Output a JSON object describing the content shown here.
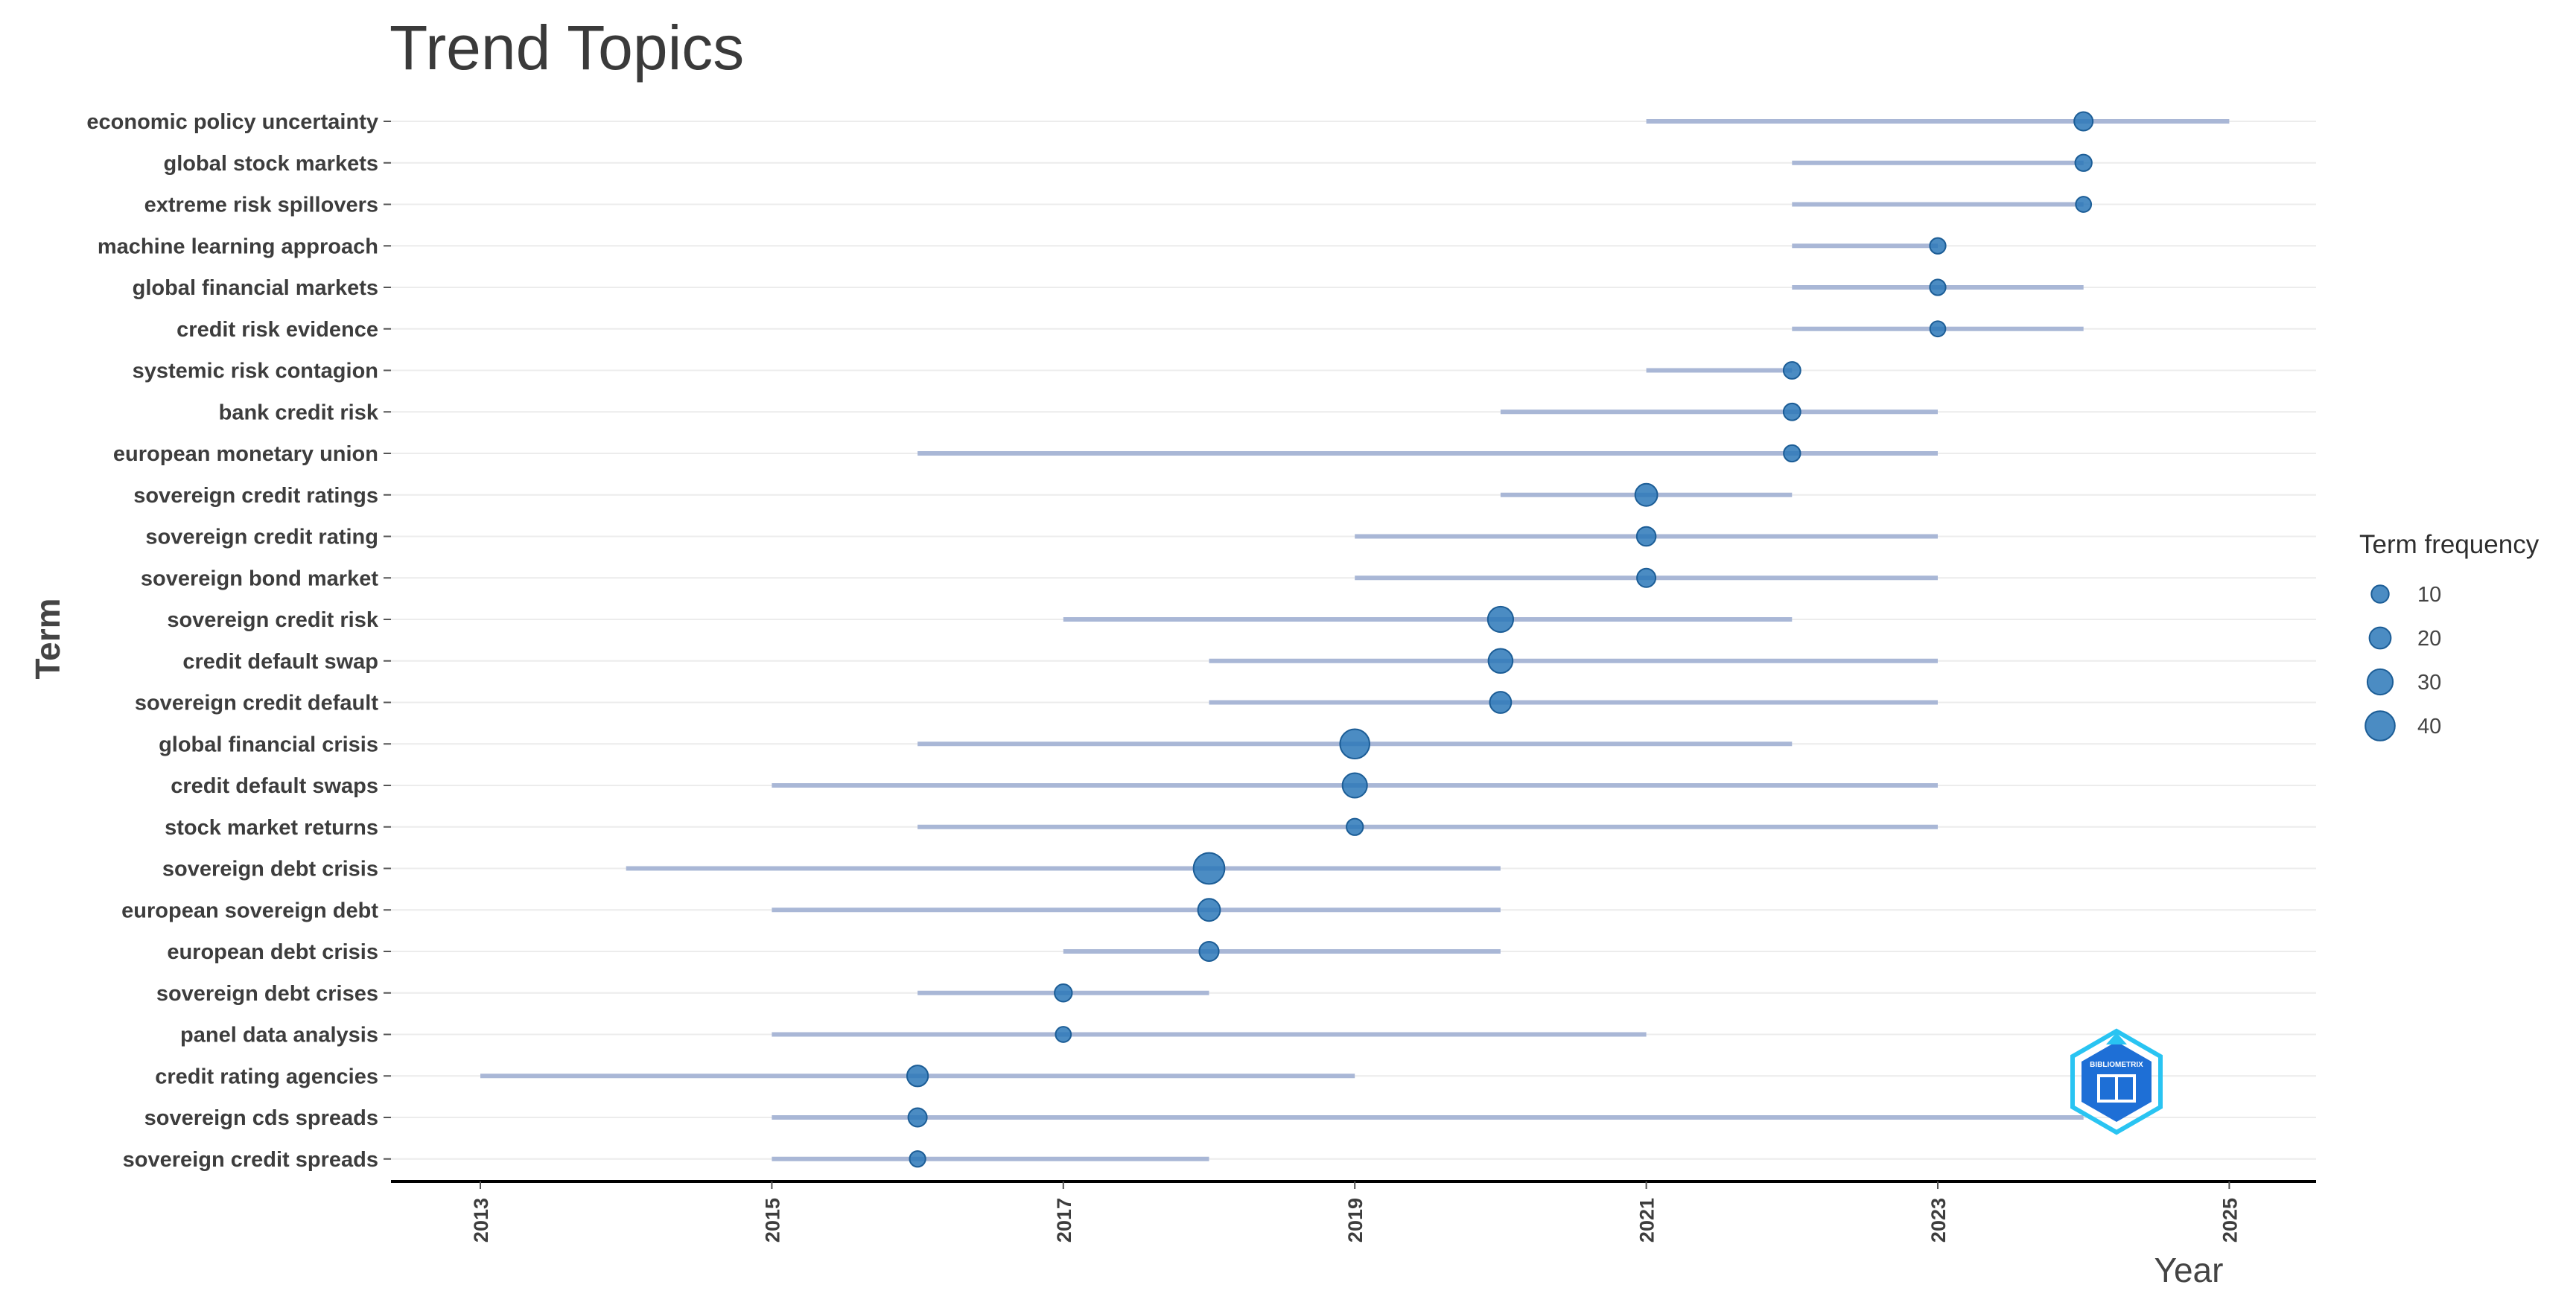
{
  "chart_data": {
    "type": "scatter",
    "title": "Trend Topics",
    "xlabel": "Year",
    "ylabel": "Term",
    "xlim": [
      2012.7,
      2025.6
    ],
    "x_ticks": [
      "2013",
      "2015",
      "2017",
      "2019",
      "2021",
      "2023",
      "2025"
    ],
    "x_tick_values": [
      2013,
      2015,
      2017,
      2019,
      2021,
      2023,
      2025
    ],
    "legend_title": "Term frequency",
    "legend_entries": [
      {
        "label": "10",
        "value": 10
      },
      {
        "label": "20",
        "value": 20
      },
      {
        "label": "30",
        "value": 30
      },
      {
        "label": "40",
        "value": 40
      }
    ],
    "terms": [
      {
        "term": "economic policy uncertainty",
        "start": 2021,
        "median": 2024,
        "end": 2025,
        "freq": 13
      },
      {
        "term": "global stock markets",
        "start": 2022,
        "median": 2024,
        "end": 2024,
        "freq": 8
      },
      {
        "term": "extreme risk spillovers",
        "start": 2022,
        "median": 2024,
        "end": 2024,
        "freq": 5
      },
      {
        "term": "machine learning approach",
        "start": 2022,
        "median": 2023,
        "end": 2023,
        "freq": 6
      },
      {
        "term": "global financial markets",
        "start": 2022,
        "median": 2023,
        "end": 2024,
        "freq": 6
      },
      {
        "term": "credit risk evidence",
        "start": 2022,
        "median": 2023,
        "end": 2024,
        "freq": 5
      },
      {
        "term": "systemic risk contagion",
        "start": 2021,
        "median": 2022,
        "end": 2022,
        "freq": 9
      },
      {
        "term": "bank credit risk",
        "start": 2020,
        "median": 2022,
        "end": 2023,
        "freq": 9
      },
      {
        "term": "european monetary union",
        "start": 2016,
        "median": 2022,
        "end": 2023,
        "freq": 8
      },
      {
        "term": "sovereign credit ratings",
        "start": 2020,
        "median": 2021,
        "end": 2022,
        "freq": 22
      },
      {
        "term": "sovereign credit rating",
        "start": 2019,
        "median": 2021,
        "end": 2023,
        "freq": 14
      },
      {
        "term": "sovereign bond market",
        "start": 2019,
        "median": 2021,
        "end": 2023,
        "freq": 13
      },
      {
        "term": "sovereign credit risk",
        "start": 2017,
        "median": 2020,
        "end": 2022,
        "freq": 30
      },
      {
        "term": "credit default swap",
        "start": 2018,
        "median": 2020,
        "end": 2023,
        "freq": 27
      },
      {
        "term": "sovereign credit default",
        "start": 2018,
        "median": 2020,
        "end": 2023,
        "freq": 20
      },
      {
        "term": "global financial crisis",
        "start": 2016,
        "median": 2019,
        "end": 2022,
        "freq": 40
      },
      {
        "term": "credit default swaps",
        "start": 2015,
        "median": 2019,
        "end": 2023,
        "freq": 28
      },
      {
        "term": "stock market returns",
        "start": 2016,
        "median": 2019,
        "end": 2023,
        "freq": 8
      },
      {
        "term": "sovereign debt crisis",
        "start": 2014,
        "median": 2018,
        "end": 2020,
        "freq": 44
      },
      {
        "term": "european sovereign debt",
        "start": 2015,
        "median": 2018,
        "end": 2020,
        "freq": 22
      },
      {
        "term": "european debt crisis",
        "start": 2017,
        "median": 2018,
        "end": 2020,
        "freq": 15
      },
      {
        "term": "sovereign debt crises",
        "start": 2016,
        "median": 2017,
        "end": 2018,
        "freq": 10
      },
      {
        "term": "panel data analysis",
        "start": 2015,
        "median": 2017,
        "end": 2021,
        "freq": 5
      },
      {
        "term": "credit rating agencies",
        "start": 2013,
        "median": 2016,
        "end": 2019,
        "freq": 19
      },
      {
        "term": "sovereign cds spreads",
        "start": 2015,
        "median": 2016,
        "end": 2024,
        "freq": 13
      },
      {
        "term": "sovereign credit spreads",
        "start": 2015,
        "median": 2016,
        "end": 2018,
        "freq": 6
      }
    ]
  },
  "logo": {
    "text": "BIBLIOMETRIX"
  },
  "colors": {
    "point": "#2b78b8",
    "point_stroke": "#1c5d96",
    "range": "#a9b7d6",
    "grid": "#ececec",
    "axis": "#000000",
    "logo_dark": "#1e6fd6",
    "logo_light": "#29c4f2"
  }
}
